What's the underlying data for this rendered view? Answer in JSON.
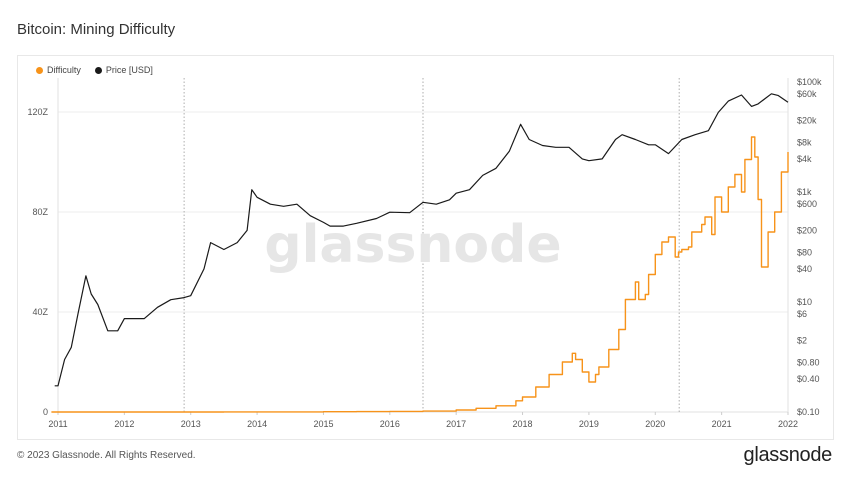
{
  "page": {
    "title": "Bitcoin: Mining Difficulty",
    "footer": "© 2023 Glassnode. All Rights Reserved.",
    "brand": "glassnode",
    "watermark": "glassnode"
  },
  "legend": [
    {
      "label": "Difficulty",
      "color": "#f7931a"
    },
    {
      "label": "Price [USD]",
      "color": "#1a1a1a"
    }
  ],
  "chart_data": {
    "type": "line",
    "title": "Bitcoin: Mining Difficulty",
    "x_ticks": [
      "2011",
      "2012",
      "2013",
      "2014",
      "2015",
      "2016",
      "2017",
      "2018",
      "2019",
      "2020",
      "2021",
      "2022"
    ],
    "left_axis": {
      "ticks": [
        "0",
        "40Z",
        "80Z",
        "120Z"
      ],
      "values": [
        0,
        40,
        80,
        120
      ],
      "ylim": [
        0,
        132
      ]
    },
    "right_axis": {
      "scale": "log",
      "ticks": [
        "$100k",
        "$60k",
        "$20k",
        "$8k",
        "$4k",
        "$1k",
        "$600",
        "$200",
        "$80",
        "$40",
        "$10",
        "$6",
        "$2",
        "$0.80",
        "$0.40",
        "$0.10"
      ],
      "values": [
        100000,
        60000,
        20000,
        8000,
        4000,
        1000,
        600,
        200,
        80,
        40,
        10,
        6,
        2,
        0.8,
        0.4,
        0.1
      ],
      "ylim": [
        0.1,
        100000
      ]
    },
    "halving_markers": [
      2012.9,
      2016.5,
      2020.36
    ],
    "series": [
      {
        "name": "Difficulty",
        "axis": "left",
        "color": "#f7931a",
        "x": [
          2010.9,
          2011.5,
          2012.0,
          2013.0,
          2013.5,
          2014.0,
          2014.5,
          2015.0,
          2015.5,
          2016.0,
          2016.5,
          2017.0,
          2017.3,
          2017.6,
          2017.9,
          2018.0,
          2018.2,
          2018.4,
          2018.6,
          2018.75,
          2018.8,
          2018.9,
          2019.0,
          2019.1,
          2019.15,
          2019.3,
          2019.45,
          2019.55,
          2019.7,
          2019.75,
          2019.85,
          2019.9,
          2020.0,
          2020.1,
          2020.2,
          2020.3,
          2020.35,
          2020.4,
          2020.5,
          2020.55,
          2020.7,
          2020.75,
          2020.85,
          2020.9,
          2021.0,
          2021.1,
          2021.2,
          2021.3,
          2021.35,
          2021.45,
          2021.5,
          2021.55,
          2021.6,
          2021.7,
          2021.8,
          2021.9,
          2022.0
        ],
        "y": [
          0,
          0,
          0,
          0,
          0.02,
          0.03,
          0.05,
          0.12,
          0.18,
          0.25,
          0.35,
          0.8,
          1.5,
          2.5,
          4.5,
          6.0,
          10.0,
          15.0,
          20.0,
          23.5,
          21.0,
          16.0,
          12.0,
          15.0,
          18.0,
          25.0,
          33.0,
          45.0,
          52.0,
          45.0,
          47.0,
          55.0,
          63.0,
          68.0,
          70.0,
          62.0,
          64.0,
          65.0,
          66.0,
          72.0,
          75.0,
          78.0,
          71.0,
          86.0,
          80.0,
          90.0,
          95.0,
          88.0,
          101.0,
          110.0,
          102.0,
          85.0,
          58.0,
          72.0,
          80.0,
          96.0,
          104.0
        ]
      },
      {
        "name": "Price [USD]",
        "axis": "right",
        "color": "#1a1a1a",
        "x": [
          2010.95,
          2011.0,
          2011.1,
          2011.2,
          2011.3,
          2011.42,
          2011.5,
          2011.6,
          2011.75,
          2011.9,
          2012.0,
          2012.3,
          2012.5,
          2012.7,
          2012.9,
          2013.0,
          2013.2,
          2013.3,
          2013.5,
          2013.7,
          2013.85,
          2013.92,
          2014.0,
          2014.2,
          2014.4,
          2014.6,
          2014.8,
          2015.0,
          2015.1,
          2015.3,
          2015.5,
          2015.8,
          2016.0,
          2016.3,
          2016.5,
          2016.7,
          2016.9,
          2017.0,
          2017.2,
          2017.4,
          2017.6,
          2017.8,
          2017.97,
          2018.1,
          2018.3,
          2018.5,
          2018.7,
          2018.9,
          2019.0,
          2019.2,
          2019.4,
          2019.5,
          2019.7,
          2019.9,
          2020.0,
          2020.2,
          2020.4,
          2020.6,
          2020.8,
          2020.95,
          2021.1,
          2021.3,
          2021.45,
          2021.55,
          2021.75,
          2021.85,
          2022.0
        ],
        "y": [
          0.3,
          0.3,
          0.9,
          1.5,
          6.0,
          30.0,
          14.0,
          9.0,
          3.0,
          3.0,
          5.0,
          5.0,
          8.0,
          11.0,
          12.0,
          13.0,
          40.0,
          120.0,
          90.0,
          120.0,
          200.0,
          1100.0,
          800.0,
          600.0,
          550.0,
          600.0,
          370.0,
          280.0,
          240.0,
          240.0,
          270.0,
          330.0,
          430.0,
          420.0,
          650.0,
          600.0,
          720.0,
          950.0,
          1100.0,
          2000.0,
          2700.0,
          5500.0,
          17000.0,
          9000.0,
          7000.0,
          6500.0,
          6500.0,
          4000.0,
          3700.0,
          4000.0,
          9000.0,
          11000.0,
          9000.0,
          7200.0,
          7200.0,
          5000.0,
          9000.0,
          11000.0,
          13000.0,
          28000.0,
          45000.0,
          58000.0,
          36000.0,
          40000.0,
          61000.0,
          57000.0,
          43000.0
        ]
      }
    ]
  }
}
